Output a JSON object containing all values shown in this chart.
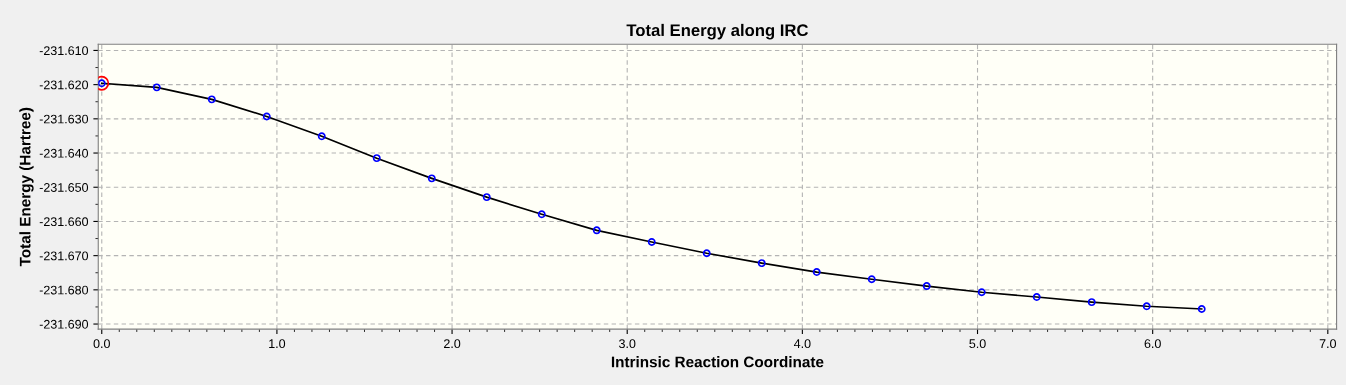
{
  "chart_data": {
    "type": "line",
    "title": "Total Energy along IRC",
    "xlabel": "Intrinsic Reaction Coordinate",
    "ylabel": "Total Energy (Hartree)",
    "xlim": [
      -0.02,
      7.05
    ],
    "ylim": [
      -231.6915,
      -231.6082
    ],
    "xticks": [
      {
        "value": 0,
        "label": "0.0"
      },
      {
        "value": 1,
        "label": "1.0"
      },
      {
        "value": 2,
        "label": "2.0"
      },
      {
        "value": 3,
        "label": "3.0"
      },
      {
        "value": 4,
        "label": "4.0"
      },
      {
        "value": 5,
        "label": "5.0"
      },
      {
        "value": 6,
        "label": "6.0"
      },
      {
        "value": 7,
        "label": "7.0"
      }
    ],
    "yticks": [
      {
        "value": -231.61,
        "label": "-231.610"
      },
      {
        "value": -231.62,
        "label": "-231.620"
      },
      {
        "value": -231.63,
        "label": "-231.630"
      },
      {
        "value": -231.64,
        "label": "-231.640"
      },
      {
        "value": -231.65,
        "label": "-231.650"
      },
      {
        "value": -231.66,
        "label": "-231.660"
      },
      {
        "value": -231.67,
        "label": "-231.670"
      },
      {
        "value": -231.68,
        "label": "-231.680"
      },
      {
        "value": -231.69,
        "label": "-231.690"
      }
    ],
    "grid": true,
    "marker": "circle",
    "series": [
      {
        "color": "#0000ff",
        "x": [
          0.0,
          0.314,
          0.628,
          0.942,
          1.256,
          1.57,
          1.884,
          2.198,
          2.512,
          2.826,
          3.14,
          3.454,
          3.768,
          4.082,
          4.396,
          4.71,
          5.024,
          5.338,
          5.652,
          5.966,
          6.28
        ],
        "values": [
          -231.6196,
          -231.6208,
          -231.6243,
          -231.6293,
          -231.6351,
          -231.6415,
          -231.6474,
          -231.6529,
          -231.6579,
          -231.6626,
          -231.666,
          -231.6693,
          -231.6722,
          -231.6748,
          -231.6769,
          -231.6789,
          -231.6807,
          -231.6821,
          -231.6836,
          -231.6848,
          -231.6856
        ]
      },
      {
        "type": "scatter",
        "color": "#ff0000",
        "x": [
          0.0
        ],
        "values": [
          -231.6196
        ]
      }
    ]
  }
}
